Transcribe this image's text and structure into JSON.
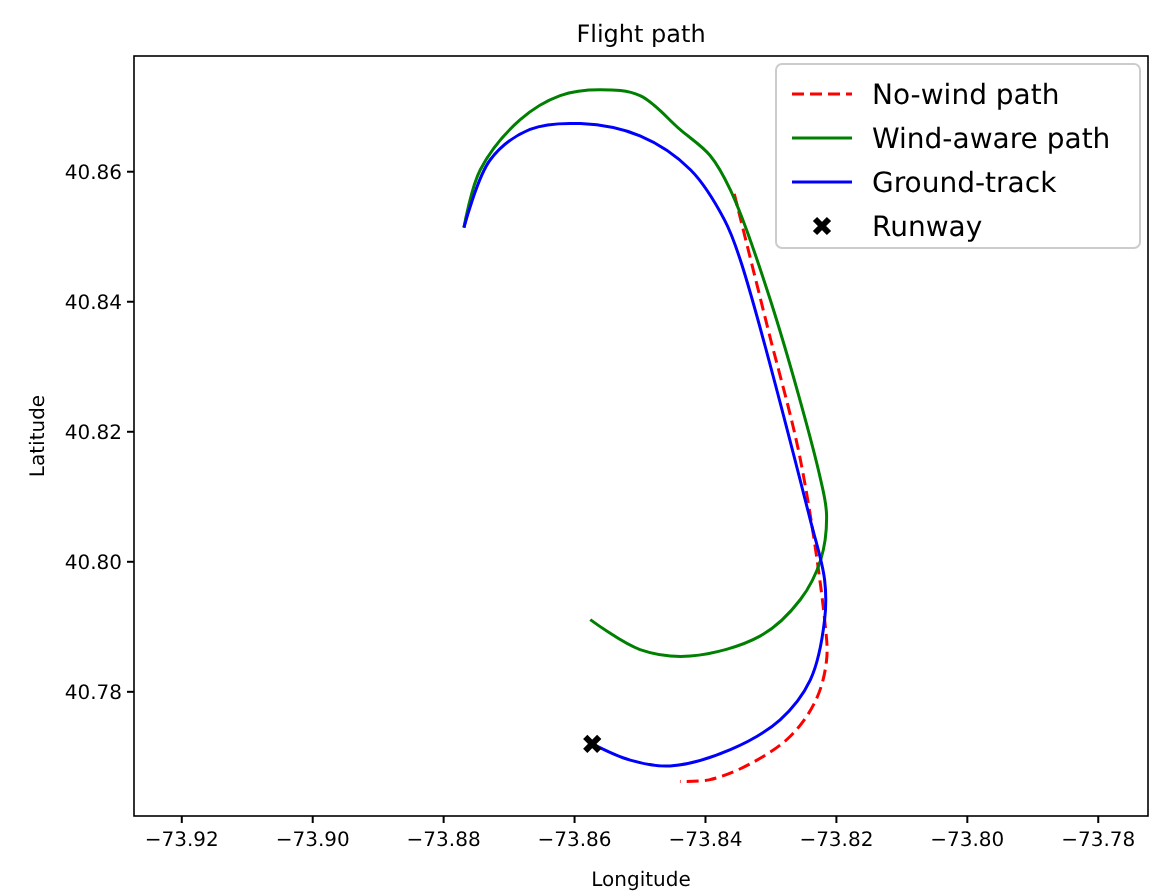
{
  "chart_data": {
    "type": "line",
    "title": "Flight path",
    "xlabel": "Longitude",
    "ylabel": "Latitude",
    "xlim": [
      -73.9273,
      -73.7724
    ],
    "ylim": [
      40.7609,
      40.8778
    ],
    "xticks": [
      {
        "value": -73.92,
        "label": "−73.92"
      },
      {
        "value": -73.9,
        "label": "−73.90"
      },
      {
        "value": -73.88,
        "label": "−73.88"
      },
      {
        "value": -73.86,
        "label": "−73.86"
      },
      {
        "value": -73.84,
        "label": "−73.84"
      },
      {
        "value": -73.82,
        "label": "−73.82"
      },
      {
        "value": -73.8,
        "label": "−73.80"
      },
      {
        "value": -73.78,
        "label": "−73.78"
      }
    ],
    "yticks": [
      {
        "value": 40.78,
        "label": "40.78"
      },
      {
        "value": 40.8,
        "label": "40.80"
      },
      {
        "value": 40.82,
        "label": "40.82"
      },
      {
        "value": 40.84,
        "label": "40.84"
      },
      {
        "value": 40.86,
        "label": "40.86"
      }
    ],
    "legend": "top right",
    "grid": false,
    "series": [
      {
        "name": "No-wind path",
        "color": "#ff0000",
        "line_style": "dashed",
        "marker": "none",
        "x": [
          -73.8356,
          -73.8305,
          -73.8255,
          -73.8218,
          -73.8215,
          -73.8231,
          -73.827,
          -73.8332,
          -73.8393,
          -73.8439
        ],
        "values": [
          40.8566,
          40.836,
          40.8157,
          40.7911,
          40.7849,
          40.7788,
          40.7732,
          40.7689,
          40.7665,
          40.7662
        ]
      },
      {
        "name": "Wind-aware path",
        "color": "#008000",
        "line_style": "solid",
        "marker": "none",
        "x": [
          -73.8769,
          -73.8744,
          -73.8683,
          -73.8622,
          -73.8561,
          -73.85,
          -73.8439,
          -73.8393,
          -73.8362,
          -73.8301,
          -73.8224,
          -73.8215,
          -73.8224,
          -73.8255,
          -73.8316,
          -73.8423,
          -73.85,
          -73.8576
        ],
        "values": [
          40.8514,
          40.8603,
          40.868,
          40.8717,
          40.8726,
          40.8717,
          40.8665,
          40.8625,
          40.8572,
          40.8403,
          40.8126,
          40.8071,
          40.8003,
          40.7942,
          40.7886,
          40.7855,
          40.7865,
          40.7911
        ]
      },
      {
        "name": "Ground-track",
        "color": "#0000ff",
        "line_style": "solid",
        "marker": "none",
        "x": [
          -73.8769,
          -73.8729,
          -73.8668,
          -73.8591,
          -73.85,
          -73.8423,
          -73.8371,
          -73.8347,
          -73.824,
          -73.8218,
          -73.8218,
          -73.824,
          -73.8286,
          -73.8362,
          -73.8454,
          -73.8515,
          -73.8573
        ],
        "values": [
          40.8514,
          40.8618,
          40.8665,
          40.8674,
          40.8655,
          40.8603,
          40.8526,
          40.8465,
          40.8065,
          40.7972,
          40.7911,
          40.7818,
          40.7757,
          40.7711,
          40.7686,
          40.7695,
          40.772
        ]
      },
      {
        "name": "Runway",
        "type": "scatter",
        "color": "#000000",
        "marker": "cross",
        "x": [
          -73.8573
        ],
        "values": [
          40.772
        ]
      }
    ]
  }
}
